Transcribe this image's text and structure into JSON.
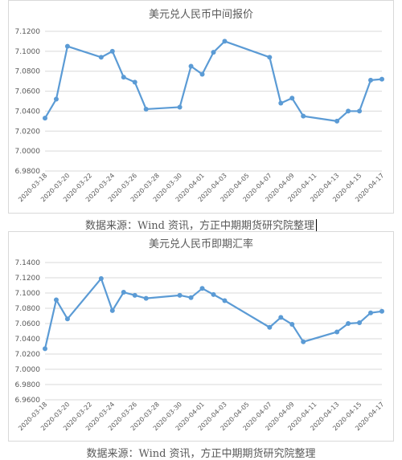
{
  "chart_data": [
    {
      "type": "line",
      "title": "美元兑人民币中间报价",
      "source": "数据来源：Wind 资讯，方正中期期货研究院整理",
      "color": "#5b9bd5",
      "ylim": [
        6.98,
        7.12
      ],
      "yticks": [
        "6.9800",
        "7.0000",
        "7.0200",
        "7.0400",
        "7.0600",
        "7.0800",
        "7.1000",
        "7.1200"
      ],
      "xlabels": [
        "2020-03-18",
        "2020-03-20",
        "2020-03-22",
        "2020-03-24",
        "2020-03-26",
        "2020-03-28",
        "2020-03-30",
        "2020-04-01",
        "2020-04-03",
        "2020-04-05",
        "2020-04-07",
        "2020-04-09",
        "2020-04-11",
        "2020-04-13",
        "2020-04-15",
        "2020-04-17"
      ],
      "x_start": "2020-03-18",
      "grid": true,
      "points": [
        {
          "x": "2020-03-18",
          "y": 7.033
        },
        {
          "x": "2020-03-19",
          "y": 7.052
        },
        {
          "x": "2020-03-20",
          "y": 7.105
        },
        {
          "x": "2020-03-23",
          "y": 7.094
        },
        {
          "x": "2020-03-24",
          "y": 7.1
        },
        {
          "x": "2020-03-25",
          "y": 7.074
        },
        {
          "x": "2020-03-26",
          "y": 7.069
        },
        {
          "x": "2020-03-27",
          "y": 7.042
        },
        {
          "x": "2020-03-30",
          "y": 7.044
        },
        {
          "x": "2020-03-31",
          "y": 7.085
        },
        {
          "x": "2020-04-01",
          "y": 7.077
        },
        {
          "x": "2020-04-02",
          "y": 7.099
        },
        {
          "x": "2020-04-03",
          "y": 7.11
        },
        {
          "x": "2020-04-07",
          "y": 7.094
        },
        {
          "x": "2020-04-08",
          "y": 7.048
        },
        {
          "x": "2020-04-09",
          "y": 7.053
        },
        {
          "x": "2020-04-10",
          "y": 7.035
        },
        {
          "x": "2020-04-13",
          "y": 7.03
        },
        {
          "x": "2020-04-14",
          "y": 7.04
        },
        {
          "x": "2020-04-15",
          "y": 7.04
        },
        {
          "x": "2020-04-16",
          "y": 7.071
        },
        {
          "x": "2020-04-17",
          "y": 7.072
        }
      ]
    },
    {
      "type": "line",
      "title": "美元兑人民币即期汇率",
      "source": "数据来源：Wind 资讯，方正中期期货研究院整理",
      "color": "#5b9bd5",
      "ylim": [
        6.96,
        7.14
      ],
      "yticks": [
        "6.9600",
        "6.9800",
        "7.0000",
        "7.0200",
        "7.0400",
        "7.0600",
        "7.0800",
        "7.1000",
        "7.1200",
        "7.1400"
      ],
      "xlabels": [
        "2020-03-18",
        "2020-03-20",
        "2020-03-22",
        "2020-03-24",
        "2020-03-26",
        "2020-03-28",
        "2020-03-30",
        "2020-04-01",
        "2020-04-03",
        "2020-04-05",
        "2020-04-07",
        "2020-04-09",
        "2020-04-11",
        "2020-04-13",
        "2020-04-15",
        "2020-04-17"
      ],
      "x_start": "2020-03-18",
      "grid": true,
      "points": [
        {
          "x": "2020-03-18",
          "y": 7.027
        },
        {
          "x": "2020-03-19",
          "y": 7.091
        },
        {
          "x": "2020-03-20",
          "y": 7.066
        },
        {
          "x": "2020-03-23",
          "y": 7.119
        },
        {
          "x": "2020-03-24",
          "y": 7.077
        },
        {
          "x": "2020-03-25",
          "y": 7.101
        },
        {
          "x": "2020-03-26",
          "y": 7.097
        },
        {
          "x": "2020-03-27",
          "y": 7.093
        },
        {
          "x": "2020-03-30",
          "y": 7.097
        },
        {
          "x": "2020-03-31",
          "y": 7.094
        },
        {
          "x": "2020-04-01",
          "y": 7.106
        },
        {
          "x": "2020-04-02",
          "y": 7.098
        },
        {
          "x": "2020-04-03",
          "y": 7.09
        },
        {
          "x": "2020-04-07",
          "y": 7.055
        },
        {
          "x": "2020-04-08",
          "y": 7.068
        },
        {
          "x": "2020-04-09",
          "y": 7.059
        },
        {
          "x": "2020-04-10",
          "y": 7.036
        },
        {
          "x": "2020-04-13",
          "y": 7.049
        },
        {
          "x": "2020-04-14",
          "y": 7.06
        },
        {
          "x": "2020-04-15",
          "y": 7.061
        },
        {
          "x": "2020-04-16",
          "y": 7.074
        },
        {
          "x": "2020-04-17",
          "y": 7.076
        }
      ]
    }
  ]
}
